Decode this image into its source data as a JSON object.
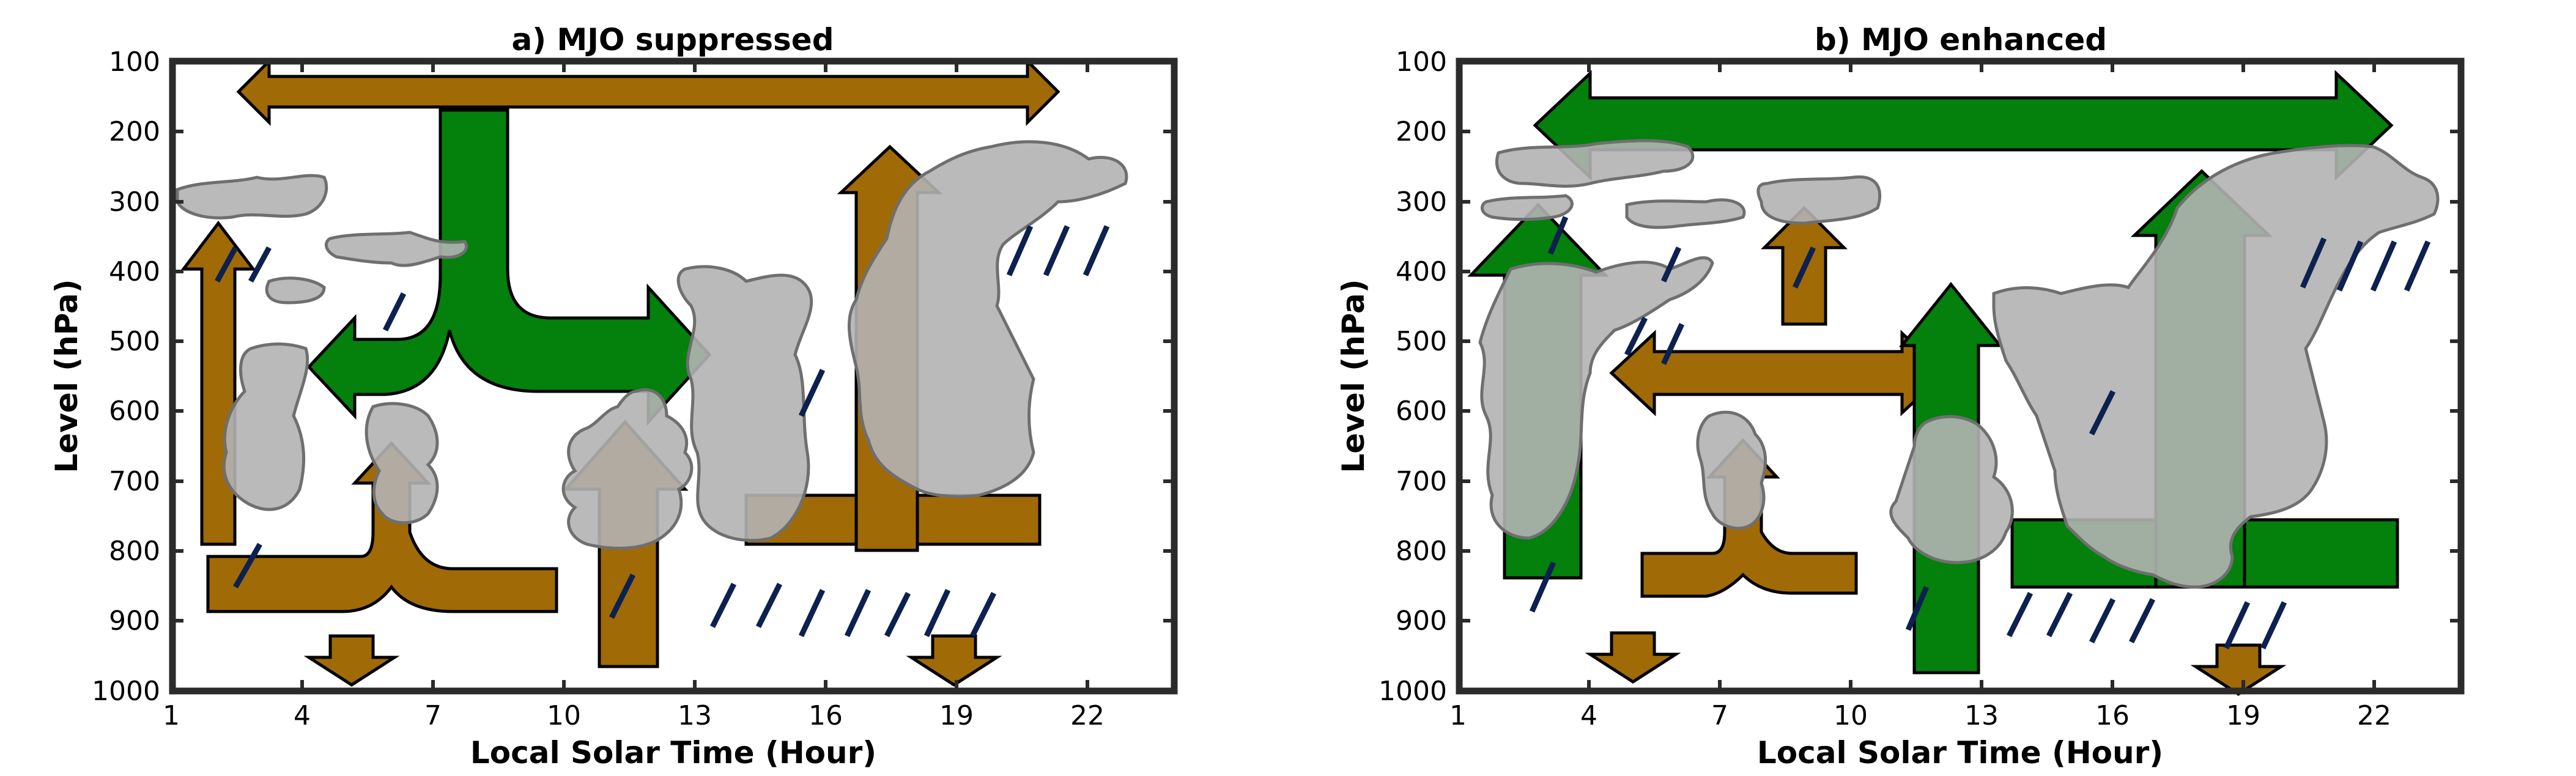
{
  "colors": {
    "brown": "#a06a07",
    "green": "#04800c",
    "cloud": "#b3b3b3",
    "rain": "#0d2150"
  },
  "panels": [
    {
      "title": "a) MJO suppressed",
      "xlabel": "Local Solar Time (Hour)",
      "ylabel": "Level (hPa)"
    },
    {
      "title": "b) MJO enhanced",
      "xlabel": "Local Solar Time (Hour)",
      "ylabel": "Level (hPa)"
    }
  ],
  "axes": {
    "x_ticks": [
      "1",
      "4",
      "7",
      "10",
      "13",
      "16",
      "19",
      "22"
    ],
    "y_ticks": [
      "100",
      "200",
      "300",
      "400",
      "500",
      "600",
      "700",
      "800",
      "900",
      "1000"
    ]
  }
}
